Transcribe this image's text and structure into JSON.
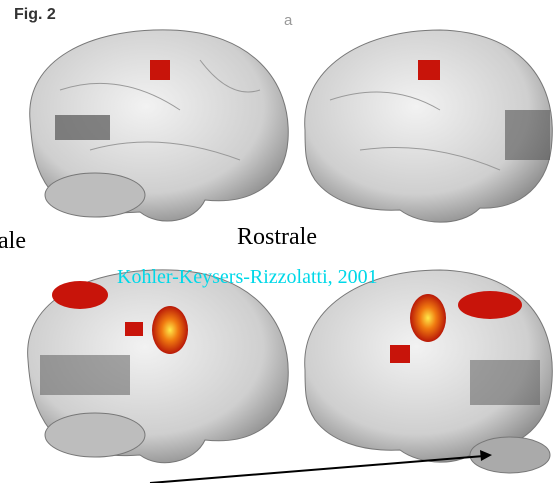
{
  "figure": {
    "label": "Fig. 2",
    "panel_a": "a",
    "caption_left": "ale",
    "caption_center": "Rostrale",
    "citation": "Kohler-Keysers-Rizzolatti, 2001"
  }
}
